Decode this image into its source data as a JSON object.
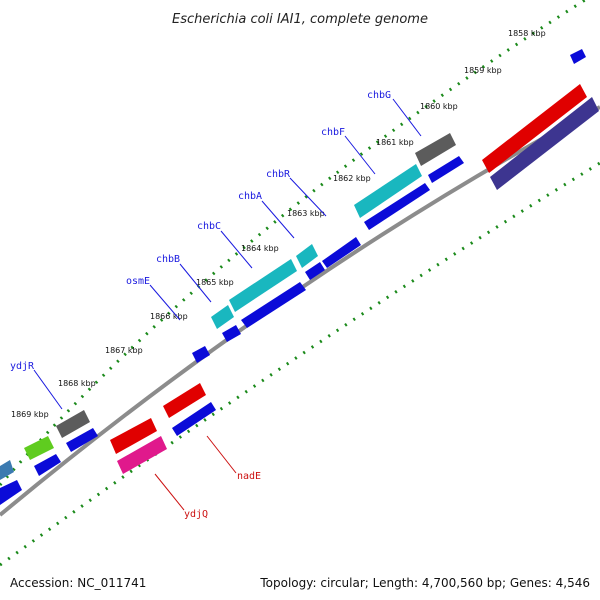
{
  "title": "Escherichia coli IAI1, complete genome",
  "footer": {
    "accession": "Accession: NC_011741",
    "topology": "Topology: circular; Length: 4,700,560 bp; Genes: 4,546"
  },
  "ticks": [
    "1858 kbp",
    "1859 kbp",
    "1860 kbp",
    "1861 kbp",
    "1862 kbp",
    "1863 kbp",
    "1864 kbp",
    "1865 kbp",
    "1866 kbp",
    "1867 kbp",
    "1868 kbp",
    "1869 kbp"
  ],
  "genes_top": [
    "chbG",
    "chbF",
    "chbR",
    "chbA",
    "chbC",
    "chbB",
    "osmE",
    "ydjR"
  ],
  "genes_bottom": [
    "nadE",
    "ydjQ"
  ],
  "colors": {
    "forward_cds": "#0b0bd8",
    "reverse_cds": "#e00000",
    "reverse_alt": "#3d3590",
    "cyan_cds": "#19b7bf",
    "gray_cds": "#5c5c5c",
    "pink_cds": "#e0198c",
    "lime_cds": "#5fcc1f",
    "steel_cds": "#3b7ab0",
    "backbone": "#8c8c8c",
    "tick_marks": "#1b8a1b",
    "label_blue": "#1a1adf",
    "label_red": "#cc1111"
  }
}
